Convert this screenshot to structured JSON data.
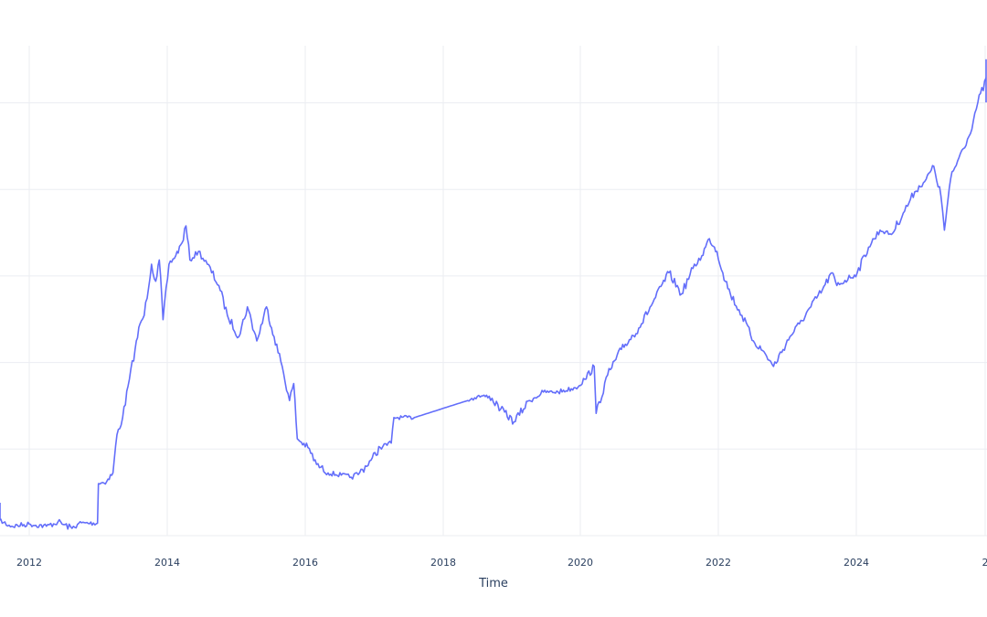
{
  "chart_data": {
    "type": "line",
    "title": "",
    "xlabel": "Time",
    "ylabel": "",
    "x_ticks": [
      "2012",
      "2014",
      "2016",
      "2018",
      "2020",
      "2022",
      "2024",
      "2"
    ],
    "y_gridline_count": 6,
    "grid": true,
    "legend": "none",
    "series": [
      {
        "color": "#636efa",
        "points": [
          [
            "2011-07-01",
            0.06
          ],
          [
            "2011-07-20",
            0.02
          ],
          [
            "2011-10-01",
            0.005
          ],
          [
            "2012-01-01",
            0.01
          ],
          [
            "2012-04-01",
            0.005
          ],
          [
            "2012-06-01",
            0.015
          ],
          [
            "2012-08-15",
            0.0
          ],
          [
            "2012-09-20",
            0.012
          ],
          [
            "2012-12-28",
            0.012
          ],
          [
            "2013-01-02",
            0.105
          ],
          [
            "2013-02-15",
            0.11
          ],
          [
            "2013-03-20",
            0.13
          ],
          [
            "2013-04-10",
            0.22
          ],
          [
            "2013-05-10",
            0.26
          ],
          [
            "2013-06-15",
            0.35
          ],
          [
            "2013-07-15",
            0.42
          ],
          [
            "2013-08-10",
            0.48
          ],
          [
            "2013-09-01",
            0.5
          ],
          [
            "2013-10-10",
            0.62
          ],
          [
            "2013-11-01",
            0.58
          ],
          [
            "2013-11-20",
            0.63
          ],
          [
            "2013-12-10",
            0.49
          ],
          [
            "2014-01-10",
            0.62
          ],
          [
            "2014-02-15",
            0.64
          ],
          [
            "2014-03-20",
            0.67
          ],
          [
            "2014-04-10",
            0.71
          ],
          [
            "2014-05-01",
            0.63
          ],
          [
            "2014-06-15",
            0.65
          ],
          [
            "2014-08-01",
            0.62
          ],
          [
            "2014-10-01",
            0.57
          ],
          [
            "2014-11-15",
            0.5
          ],
          [
            "2015-01-15",
            0.45
          ],
          [
            "2015-03-01",
            0.52
          ],
          [
            "2015-04-20",
            0.44
          ],
          [
            "2015-06-10",
            0.52
          ],
          [
            "2015-07-20",
            0.45
          ],
          [
            "2015-09-01",
            0.38
          ],
          [
            "2015-10-10",
            0.3
          ],
          [
            "2015-11-01",
            0.34
          ],
          [
            "2015-11-20",
            0.21
          ],
          [
            "2016-01-15",
            0.19
          ],
          [
            "2016-03-01",
            0.15
          ],
          [
            "2016-05-01",
            0.13
          ],
          [
            "2016-07-10",
            0.125
          ],
          [
            "2016-09-01",
            0.12
          ],
          [
            "2016-10-15",
            0.13
          ],
          [
            "2016-12-15",
            0.16
          ],
          [
            "2017-02-01",
            0.19
          ],
          [
            "2017-04-01",
            0.2
          ],
          [
            "2017-04-15",
            0.26
          ],
          [
            "2017-08-01",
            0.26
          ],
          [
            "2018-05-10",
            0.3
          ],
          [
            "2018-07-01",
            0.31
          ],
          [
            "2018-09-01",
            0.31
          ],
          [
            "2018-11-01",
            0.28
          ],
          [
            "2019-01-10",
            0.25
          ],
          [
            "2019-04-01",
            0.3
          ],
          [
            "2019-06-15",
            0.32
          ],
          [
            "2019-09-01",
            0.32
          ],
          [
            "2019-12-01",
            0.33
          ],
          [
            "2020-01-20",
            0.35
          ],
          [
            "2020-03-10",
            0.38
          ],
          [
            "2020-03-20",
            0.27
          ],
          [
            "2020-05-20",
            0.36
          ],
          [
            "2020-08-01",
            0.42
          ],
          [
            "2020-11-01",
            0.47
          ],
          [
            "2021-01-15",
            0.53
          ],
          [
            "2021-04-10",
            0.6
          ],
          [
            "2021-06-15",
            0.55
          ],
          [
            "2021-08-15",
            0.61
          ],
          [
            "2021-10-01",
            0.64
          ],
          [
            "2021-11-10",
            0.68
          ],
          [
            "2021-12-20",
            0.65
          ],
          [
            "2022-01-20",
            0.6
          ],
          [
            "2022-03-01",
            0.55
          ],
          [
            "2022-05-01",
            0.5
          ],
          [
            "2022-07-01",
            0.44
          ],
          [
            "2022-09-01",
            0.41
          ],
          [
            "2022-10-15",
            0.38
          ],
          [
            "2023-01-10",
            0.45
          ],
          [
            "2023-03-01",
            0.48
          ],
          [
            "2023-05-01",
            0.52
          ],
          [
            "2023-07-01",
            0.56
          ],
          [
            "2023-08-20",
            0.6
          ],
          [
            "2023-09-15",
            0.57
          ],
          [
            "2024-01-01",
            0.6
          ],
          [
            "2024-03-01",
            0.66
          ],
          [
            "2024-05-01",
            0.7
          ],
          [
            "2024-07-01",
            0.69
          ],
          [
            "2024-09-01",
            0.74
          ],
          [
            "2024-11-01",
            0.79
          ],
          [
            "2025-01-01",
            0.82
          ],
          [
            "2025-02-10",
            0.85
          ],
          [
            "2025-03-20",
            0.78
          ],
          [
            "2025-04-07",
            0.7
          ],
          [
            "2025-05-10",
            0.82
          ],
          [
            "2025-07-01",
            0.88
          ],
          [
            "2025-08-15",
            0.92
          ],
          [
            "2025-10-01",
            1.0
          ],
          [
            "2025-11-20",
            1.06
          ],
          [
            "2025-12-15",
            1.1
          ],
          [
            "2026-01-10",
            1.0
          ]
        ]
      }
    ]
  }
}
